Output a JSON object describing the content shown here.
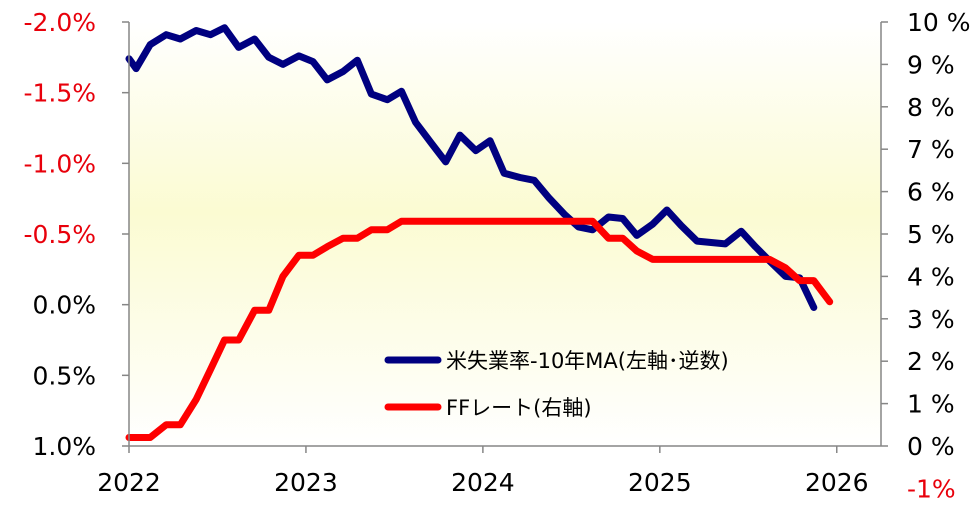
{
  "chart_data": {
    "type": "line",
    "x_range": [
      2022.0,
      2026.25
    ],
    "x_ticks": [
      "2022",
      "2023",
      "2024",
      "2025",
      "2026"
    ],
    "y_left": {
      "range": [
        1.0,
        -2.0
      ],
      "inverted": true,
      "color": "#000000",
      "ticks": [
        "-2.0%",
        "-1.5%",
        "-1.0%",
        "-0.5%",
        "0.0%",
        "0.5%",
        "1.0%"
      ],
      "tick_colors": [
        "#e8000b",
        "#e8000b",
        "#e8000b",
        "#e8000b",
        "#000000",
        "#000000",
        "#000000"
      ]
    },
    "y_right": {
      "range": [
        0,
        10
      ],
      "ticks": [
        "10 %",
        "9 %",
        "8 %",
        "7 %",
        "6 %",
        "5 %",
        "4 %",
        "3 %",
        "2 %",
        "1 %",
        "0 %",
        "-1%"
      ],
      "tick_colors": [
        "#000000",
        "#000000",
        "#000000",
        "#000000",
        "#000000",
        "#000000",
        "#000000",
        "#000000",
        "#000000",
        "#000000",
        "#000000",
        "#e8000b"
      ]
    },
    "background": {
      "gradient": [
        "#ffffff",
        "#fbfbd2",
        "#ffffff"
      ]
    },
    "grid": false,
    "legend_position": "bottom-right",
    "series": [
      {
        "name": "米失業率-10年MA(左軸･逆数)",
        "axis": "left",
        "color": "#000080",
        "points": [
          [
            2022.0,
            -1.74
          ],
          [
            2022.04,
            -1.67
          ],
          [
            2022.12,
            -1.84
          ],
          [
            2022.21,
            -1.91
          ],
          [
            2022.29,
            -1.88
          ],
          [
            2022.38,
            -1.94
          ],
          [
            2022.46,
            -1.91
          ],
          [
            2022.54,
            -1.96
          ],
          [
            2022.62,
            -1.82
          ],
          [
            2022.71,
            -1.88
          ],
          [
            2022.79,
            -1.75
          ],
          [
            2022.87,
            -1.7
          ],
          [
            2022.96,
            -1.76
          ],
          [
            2023.04,
            -1.72
          ],
          [
            2023.12,
            -1.59
          ],
          [
            2023.21,
            -1.65
          ],
          [
            2023.29,
            -1.73
          ],
          [
            2023.37,
            -1.49
          ],
          [
            2023.46,
            -1.45
          ],
          [
            2023.54,
            -1.51
          ],
          [
            2023.62,
            -1.29
          ],
          [
            2023.71,
            -1.14
          ],
          [
            2023.79,
            -1.01
          ],
          [
            2023.87,
            -1.2
          ],
          [
            2023.96,
            -1.09
          ],
          [
            2024.04,
            -1.16
          ],
          [
            2024.12,
            -0.93
          ],
          [
            2024.21,
            -0.9
          ],
          [
            2024.29,
            -0.88
          ],
          [
            2024.37,
            -0.76
          ],
          [
            2024.46,
            -0.64
          ],
          [
            2024.54,
            -0.55
          ],
          [
            2024.62,
            -0.53
          ],
          [
            2024.71,
            -0.62
          ],
          [
            2024.79,
            -0.61
          ],
          [
            2024.87,
            -0.49
          ],
          [
            2024.96,
            -0.57
          ],
          [
            2025.04,
            -0.67
          ],
          [
            2025.12,
            -0.56
          ],
          [
            2025.21,
            -0.45
          ],
          [
            2025.37,
            -0.43
          ],
          [
            2025.46,
            -0.52
          ],
          [
            2025.54,
            -0.41
          ],
          [
            2025.62,
            -0.31
          ],
          [
            2025.71,
            -0.2
          ],
          [
            2025.79,
            -0.19
          ],
          [
            2025.87,
            0.02
          ]
        ]
      },
      {
        "name": "FFレート(右軸)",
        "axis": "right",
        "color": "#fe0000",
        "points": [
          [
            2022.0,
            0.2
          ],
          [
            2022.12,
            0.2
          ],
          [
            2022.21,
            0.5
          ],
          [
            2022.29,
            0.5
          ],
          [
            2022.38,
            1.1
          ],
          [
            2022.46,
            1.8
          ],
          [
            2022.54,
            2.5
          ],
          [
            2022.62,
            2.5
          ],
          [
            2022.71,
            3.2
          ],
          [
            2022.79,
            3.2
          ],
          [
            2022.87,
            4.0
          ],
          [
            2022.96,
            4.5
          ],
          [
            2023.04,
            4.5
          ],
          [
            2023.12,
            4.7
          ],
          [
            2023.21,
            4.9
          ],
          [
            2023.29,
            4.9
          ],
          [
            2023.37,
            5.1
          ],
          [
            2023.46,
            5.1
          ],
          [
            2023.54,
            5.3
          ],
          [
            2024.62,
            5.3
          ],
          [
            2024.71,
            4.9
          ],
          [
            2024.79,
            4.9
          ],
          [
            2024.87,
            4.6
          ],
          [
            2024.96,
            4.4
          ],
          [
            2025.62,
            4.4
          ],
          [
            2025.71,
            4.2
          ],
          [
            2025.79,
            3.9
          ],
          [
            2025.87,
            3.9
          ],
          [
            2025.96,
            3.4
          ]
        ]
      }
    ]
  }
}
